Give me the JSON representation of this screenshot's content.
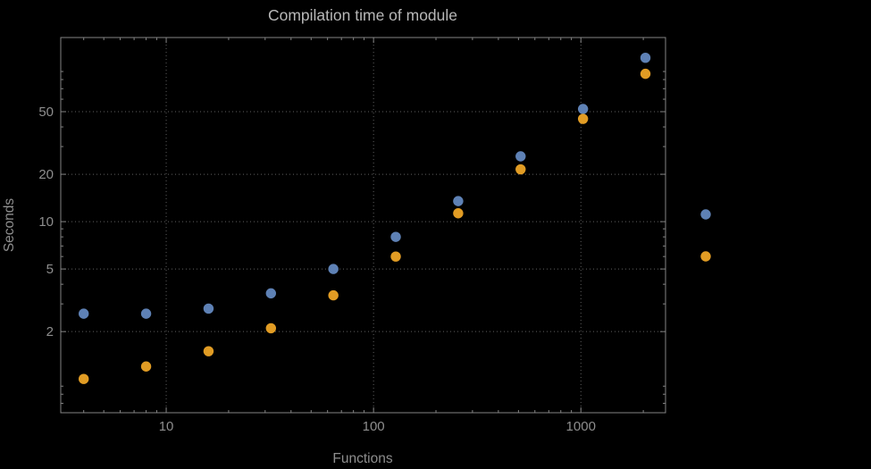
{
  "chart_data": {
    "type": "scatter",
    "title": "Compilation time of module",
    "xlabel": "Functions",
    "ylabel": "Seconds",
    "x_scale": "log",
    "y_scale": "log",
    "x": [
      4,
      8,
      16,
      32,
      64,
      128,
      256,
      512,
      1024,
      2048
    ],
    "series": [
      {
        "name": "blue",
        "color": "#5e81b5",
        "values": [
          2.6,
          2.6,
          2.8,
          3.5,
          5.0,
          8.0,
          13.5,
          26,
          52,
          110
        ]
      },
      {
        "name": "orange",
        "color": "#e19c24",
        "values": [
          1.0,
          1.2,
          1.5,
          2.1,
          3.4,
          6.0,
          11.3,
          21.5,
          45,
          87
        ]
      }
    ],
    "x_ticks": [
      10,
      100,
      1000
    ],
    "y_ticks": [
      2,
      5,
      10,
      20,
      50
    ],
    "x_range": [
      3.1,
      2560
    ],
    "y_range": [
      0.61,
      148
    ],
    "grid": true,
    "grid_style": "dotted",
    "legend_position": "right",
    "legend_markers": [
      "#5e81b5",
      "#e19c24"
    ]
  },
  "style": {
    "background": "#000000",
    "frame_color": "#848484",
    "grid_color": "#5f5f5f",
    "tick_text_color": "#8e8e8e",
    "axis_label_color": "#8e8e8e",
    "title_color": "#b8b8b8"
  }
}
